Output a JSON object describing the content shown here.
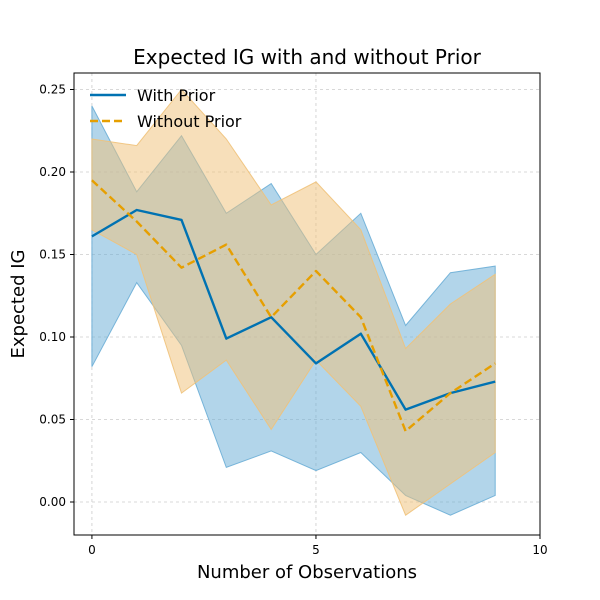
{
  "chart_data": {
    "type": "line",
    "title": "Expected IG with and without Prior",
    "xlabel": "Number of Observations",
    "ylabel": "Expected IG",
    "xlim": [
      -0.4,
      10
    ],
    "ylim": [
      -0.02,
      0.26
    ],
    "xticks": [
      0,
      5,
      10
    ],
    "xtick_labels": [
      "0",
      "5",
      "10"
    ],
    "yticks": [
      0.0,
      0.05,
      0.1,
      0.15,
      0.2,
      0.25
    ],
    "ytick_labels": [
      "0.00",
      "0.05",
      "0.10",
      "0.15",
      "0.20",
      "0.25"
    ],
    "grid": true,
    "legend": "top-left",
    "x": [
      0,
      1,
      2,
      3,
      4,
      5,
      6,
      7,
      8,
      9
    ],
    "series": [
      {
        "name": "With Prior",
        "color": "#0072b2",
        "band_color": "#6baed6",
        "dash": "solid",
        "values": [
          0.161,
          0.177,
          0.171,
          0.099,
          0.112,
          0.084,
          0.102,
          0.056,
          0.066,
          0.073
        ],
        "upper": [
          0.24,
          0.188,
          0.222,
          0.175,
          0.193,
          0.15,
          0.175,
          0.107,
          0.139,
          0.143
        ],
        "lower": [
          0.082,
          0.133,
          0.095,
          0.021,
          0.031,
          0.019,
          0.03,
          0.004,
          -0.008,
          0.004
        ]
      },
      {
        "name": "Without Prior",
        "color": "#e69f00",
        "band_color": "#f0c27a",
        "dash": "dashed",
        "values": [
          0.195,
          0.17,
          0.142,
          0.156,
          0.112,
          0.14,
          0.112,
          0.043,
          0.066,
          0.084
        ],
        "upper": [
          0.22,
          0.216,
          0.25,
          0.22,
          0.18,
          0.194,
          0.165,
          0.093,
          0.12,
          0.138
        ],
        "lower": [
          0.165,
          0.15,
          0.066,
          0.086,
          0.044,
          0.086,
          0.058,
          -0.008,
          0.011,
          0.03
        ]
      }
    ]
  }
}
